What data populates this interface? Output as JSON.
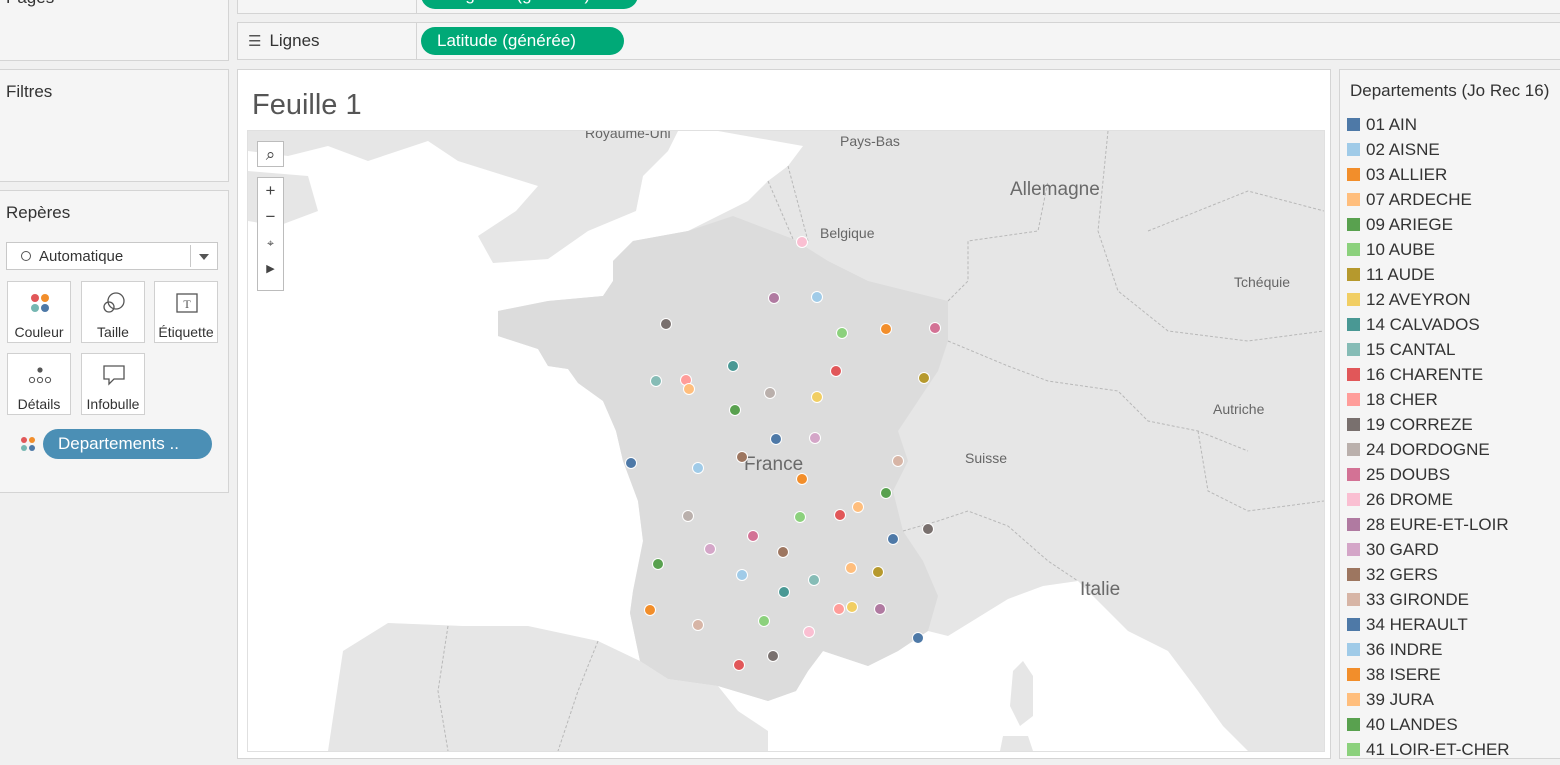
{
  "shelves": {
    "colonnes_pill": "Longitude (générée)",
    "lignes_label": "Lignes",
    "lignes_pill": "Latitude (générée)"
  },
  "sidebar": {
    "pages_title": "Pages",
    "filtres_title": "Filtres",
    "reperes_title": "Repères",
    "mark_type": "Automatique",
    "mark_buttons": [
      "Couleur",
      "Taille",
      "Étiquette",
      "Détails",
      "Infobulle"
    ],
    "color_field": "Departements .."
  },
  "sheet": {
    "title": "Feuille 1"
  },
  "map": {
    "labels": [
      "Royaume-Uni",
      "Pays-Bas",
      "Allemagne",
      "Belgique",
      "Tchéquie",
      "Autriche",
      "Suisse",
      "France",
      "Italie"
    ],
    "controls": [
      "search-icon",
      "zoom-in-icon",
      "zoom-out-icon",
      "reset-map-icon",
      "expand-icon"
    ]
  },
  "legend": {
    "title": "Departements (Jo Rec 16)",
    "items": [
      {
        "label": "01 AIN",
        "color": "#4e79a7"
      },
      {
        "label": "02 AISNE",
        "color": "#a0cbe8"
      },
      {
        "label": "03 ALLIER",
        "color": "#f28e2b"
      },
      {
        "label": "07 ARDECHE",
        "color": "#ffbe7d"
      },
      {
        "label": "09 ARIEGE",
        "color": "#59a14f"
      },
      {
        "label": "10 AUBE",
        "color": "#8cd17d"
      },
      {
        "label": "11 AUDE",
        "color": "#b6992d"
      },
      {
        "label": "12 AVEYRON",
        "color": "#f1ce63"
      },
      {
        "label": "14 CALVADOS",
        "color": "#499894"
      },
      {
        "label": "15 CANTAL",
        "color": "#86bcb6"
      },
      {
        "label": "16 CHARENTE",
        "color": "#e15759"
      },
      {
        "label": "18 CHER",
        "color": "#ff9d9a"
      },
      {
        "label": "19 CORREZE",
        "color": "#79706e"
      },
      {
        "label": "24 DORDOGNE",
        "color": "#bab0ac"
      },
      {
        "label": "25 DOUBS",
        "color": "#d37295"
      },
      {
        "label": "26 DROME",
        "color": "#fabfd2"
      },
      {
        "label": "28 EURE-ET-LOIR",
        "color": "#b07aa1"
      },
      {
        "label": "30 GARD",
        "color": "#d4a6c8"
      },
      {
        "label": "32 GERS",
        "color": "#9d7660"
      },
      {
        "label": "33 GIRONDE",
        "color": "#d7b5a6"
      },
      {
        "label": "34 HERAULT",
        "color": "#4e79a7"
      },
      {
        "label": "36 INDRE",
        "color": "#a0cbe8"
      },
      {
        "label": "38 ISERE",
        "color": "#f28e2b"
      },
      {
        "label": "39 JURA",
        "color": "#ffbe7d"
      },
      {
        "label": "40 LANDES",
        "color": "#59a14f"
      },
      {
        "label": "41 LOIR-ET-CHER",
        "color": "#8cd17d"
      }
    ]
  }
}
